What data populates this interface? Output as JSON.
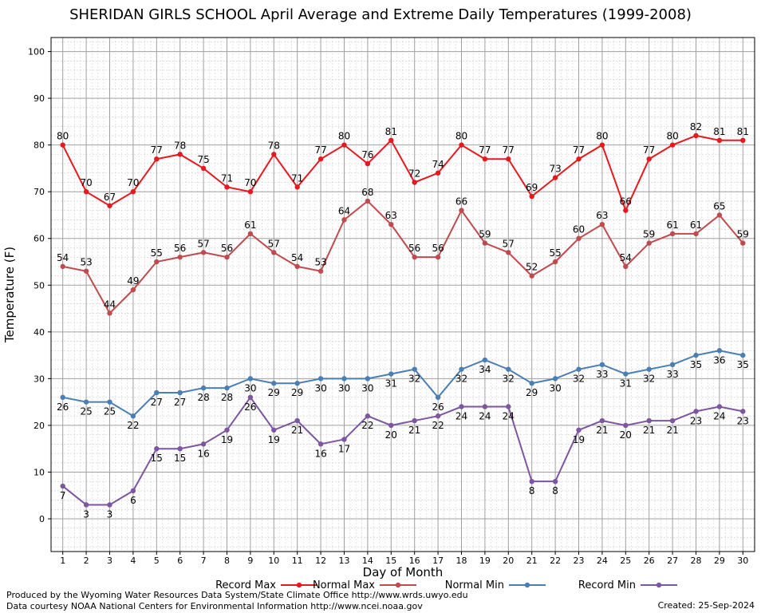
{
  "chart_data": {
    "type": "line",
    "title": "SHERIDAN GIRLS SCHOOL April Average and Extreme Daily Temperatures (1999-2008)",
    "xlabel": "Day of Month",
    "ylabel": "Temperature (F)",
    "x": [
      1,
      2,
      3,
      4,
      5,
      6,
      7,
      8,
      9,
      10,
      11,
      12,
      13,
      14,
      15,
      16,
      17,
      18,
      19,
      20,
      21,
      22,
      23,
      24,
      25,
      26,
      27,
      28,
      29,
      30
    ],
    "xlim": [
      0.5,
      30.5
    ],
    "ylim": [
      -7,
      103
    ],
    "yticks": [
      0,
      10,
      20,
      30,
      40,
      50,
      60,
      70,
      80,
      90,
      100
    ],
    "grid": true,
    "legend_position": "bottom",
    "series": [
      {
        "name": "Record Max",
        "color": "#e8191e",
        "values": [
          80,
          70,
          67,
          70,
          77,
          78,
          75,
          71,
          70,
          78,
          71,
          77,
          80,
          76,
          81,
          72,
          74,
          80,
          77,
          77,
          69,
          73,
          77,
          80,
          66,
          77,
          80,
          82,
          81,
          81
        ]
      },
      {
        "name": "Normal Max",
        "color": "#c04a4e",
        "values": [
          54,
          53,
          44,
          49,
          55,
          56,
          57,
          56,
          61,
          57,
          54,
          53,
          64,
          68,
          63,
          56,
          56,
          66,
          59,
          57,
          52,
          55,
          60,
          63,
          54,
          59,
          61,
          61,
          65,
          59
        ]
      },
      {
        "name": "Normal Min",
        "color": "#4a7fb5",
        "values": [
          26,
          25,
          25,
          22,
          27,
          27,
          28,
          28,
          30,
          29,
          29,
          30,
          30,
          30,
          31,
          32,
          26,
          32,
          34,
          32,
          29,
          30,
          32,
          33,
          31,
          32,
          33,
          35,
          36,
          35
        ]
      },
      {
        "name": "Record Min",
        "color": "#7d55a0",
        "values": [
          7,
          3,
          3,
          6,
          15,
          15,
          16,
          19,
          26,
          19,
          21,
          16,
          17,
          22,
          20,
          21,
          22,
          24,
          24,
          24,
          8,
          8,
          19,
          21,
          20,
          21,
          21,
          23,
          24,
          23
        ]
      }
    ]
  },
  "footer": {
    "credit1": "Produced by the Wyoming Water Resources Data System/State Climate Office http://www.wrds.uwyo.edu",
    "credit2": "Data courtesy NOAA National Centers for Environmental Information http://www.ncei.noaa.gov",
    "created": "Created: 25-Sep-2024"
  }
}
